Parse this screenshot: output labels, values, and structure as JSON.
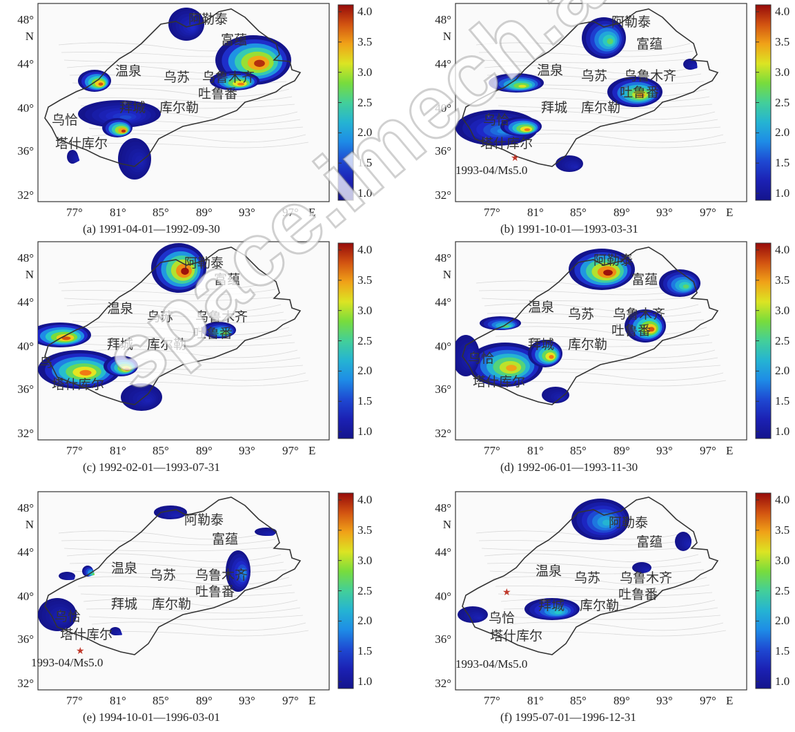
{
  "colorbar": {
    "ticks": [
      "4.0",
      "3.5",
      "3.0",
      "2.5",
      "2.0",
      "1.5",
      "1.0"
    ],
    "min": 1.0,
    "max": 4.0
  },
  "x_ticks": [
    "77°",
    "81°",
    "85°",
    "89°",
    "93°",
    "97°",
    "E"
  ],
  "y_ticks": [
    "48°",
    "N",
    "44°",
    "40°",
    "36°",
    "32°"
  ],
  "epicenter_label": "1993-04/Ms5.0",
  "watermark": "space.imech.ac.cn",
  "panels": [
    {
      "caption": "(a) 1991-04-01—1992-09-30",
      "places": [
        "阿勒泰",
        "富蕴",
        "温泉",
        "乌苏",
        "乌鲁木齐",
        "吐鲁番",
        "拜城",
        "库尔勒",
        "乌恰",
        "塔什库尔"
      ],
      "show_epicenter": false
    },
    {
      "caption": "(b) 1991-10-01—1993-03-31",
      "places": [
        "阿勒泰",
        "富蕴",
        "温泉",
        "乌苏",
        "乌鲁木齐",
        "吐鲁番",
        "拜城",
        "库尔勒",
        "乌恰",
        "塔什库尔"
      ],
      "show_epicenter": true
    },
    {
      "caption": "(c) 1992-02-01—1993-07-31",
      "places": [
        "阿勒泰",
        "富蕴",
        "温泉",
        "乌苏",
        "乌鲁木齐",
        "吐鲁番",
        "拜城",
        "库尔勒",
        "乌",
        "塔什库尔"
      ],
      "show_epicenter": false
    },
    {
      "caption": "(d) 1992-06-01—1993-11-30",
      "places": [
        "阿勒泰",
        "富蕴",
        "温泉",
        "乌苏",
        "乌鲁木齐",
        "吐鲁番",
        "拜城",
        "库尔勒",
        "乌恰",
        "塔什库尔"
      ],
      "show_epicenter": false
    },
    {
      "caption": "(e) 1994-10-01—1996-03-01",
      "places": [
        "阿勒泰",
        "富蕴",
        "温泉",
        "乌苏",
        "乌鲁木齐",
        "吐鲁番",
        "拜城",
        "库尔勒",
        "乌恰",
        "塔什库尔"
      ],
      "show_epicenter": true
    },
    {
      "caption": "(f) 1995-07-01—1996-12-31",
      "places": [
        "阿勒泰",
        "富蕴",
        "温泉",
        "乌苏",
        "乌鲁木齐",
        "吐鲁番",
        "拜城",
        "库尔勒",
        "乌恰",
        "塔什库尔"
      ],
      "show_epicenter": true
    }
  ]
}
